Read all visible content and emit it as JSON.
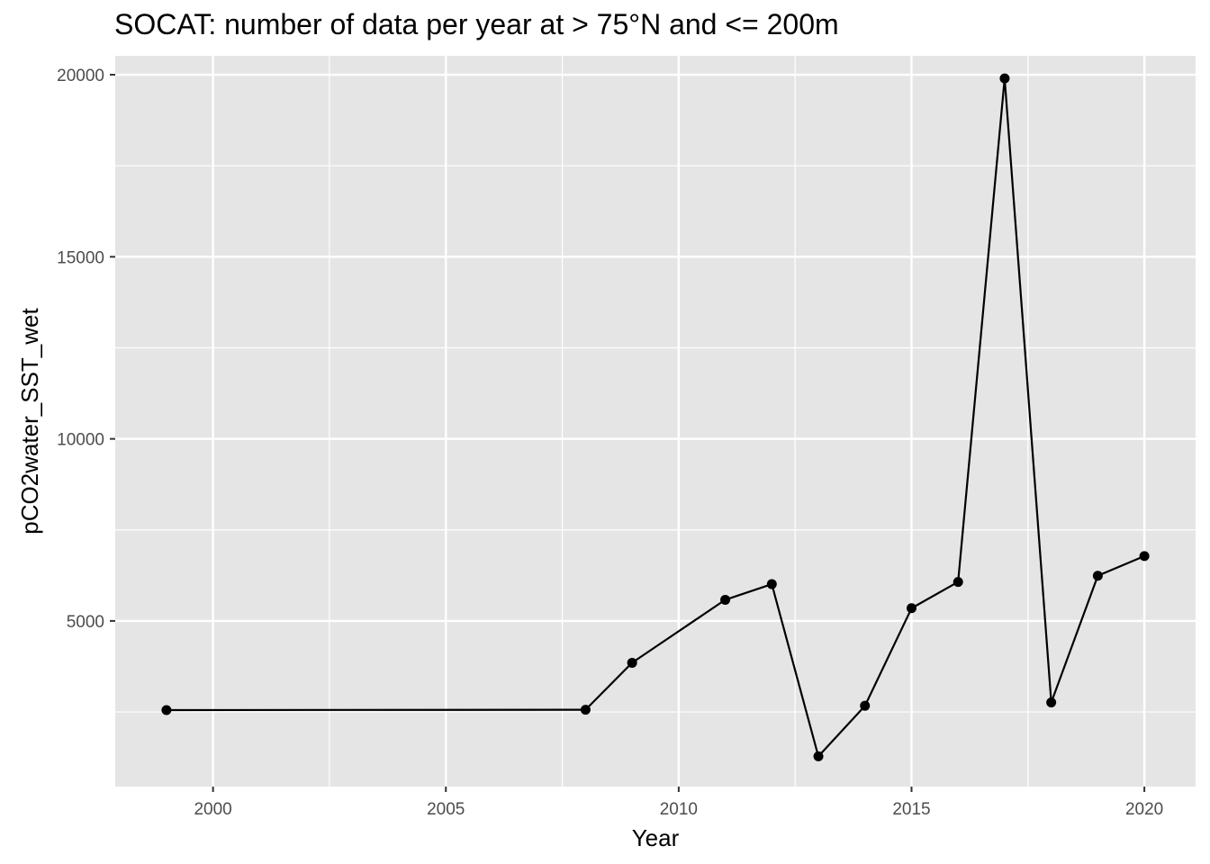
{
  "chart_data": {
    "type": "line",
    "title": "SOCAT: number of data per year at > 75°N and <= 200m",
    "xlabel": "Year",
    "ylabel": "pCO2water_SST_wet",
    "xlim": [
      1997.9,
      2021.1
    ],
    "ylim": [
      450,
      20520
    ],
    "x_ticks": [
      2000,
      2005,
      2010,
      2015,
      2020
    ],
    "x_minor_ticks": [
      2002.5,
      2007.5,
      2012.5,
      2017.5
    ],
    "y_ticks": [
      5000,
      10000,
      15000,
      20000
    ],
    "y_minor_ticks": [
      2500,
      7500,
      12500,
      17500
    ],
    "grid": true,
    "panel_background": "#e5e5e5",
    "grid_color": "#ffffff",
    "series": [
      {
        "x": [
          1999,
          2008,
          2009,
          2011,
          2012,
          2013,
          2014,
          2015,
          2016,
          2017,
          2018,
          2019,
          2020
        ],
        "y": [
          2550,
          2560,
          3850,
          5580,
          6010,
          1280,
          2670,
          5350,
          6070,
          19900,
          2760,
          6240,
          6780
        ],
        "color": "#000000"
      }
    ]
  }
}
